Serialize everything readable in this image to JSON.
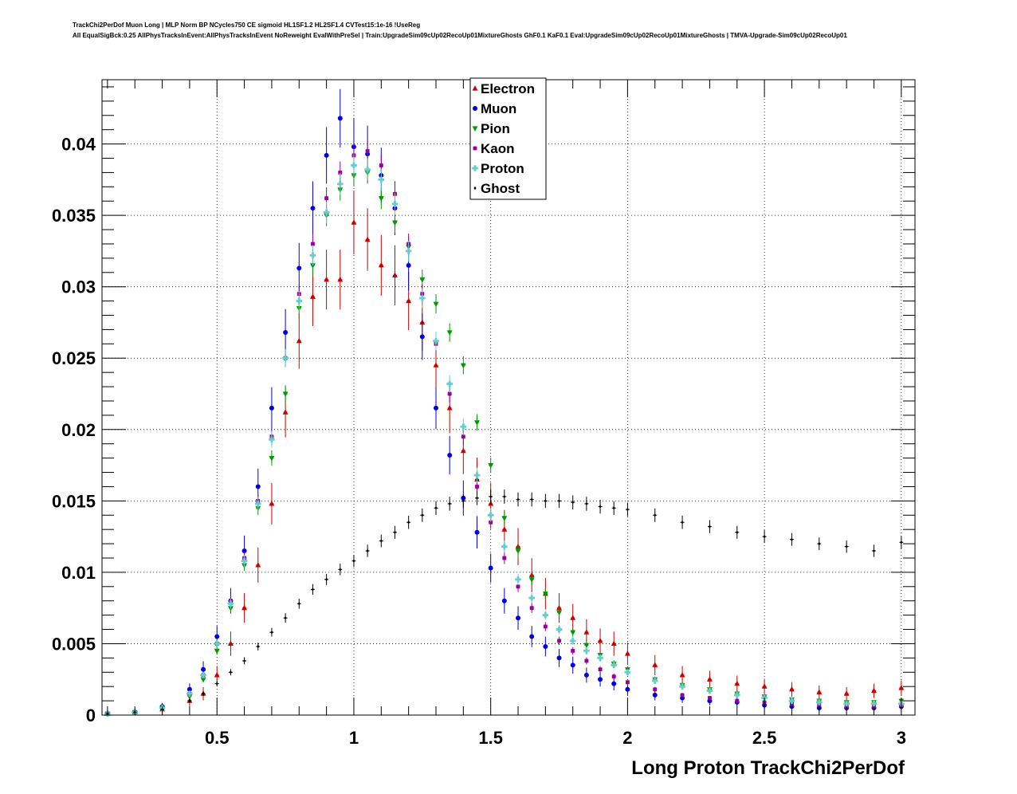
{
  "header": {
    "line1": "TrackChi2PerDof Muon Long | MLP Norm BP NCycles750 CE sigmoid HL1SF1.2 HL2SF1.4 CVTest15:1e-16 !UseReg",
    "line2": "All EqualSigBck:0.25 AllPhysTracksInEvent:AllPhysTracksInEvent NoReweight EvalWithPreSel | Train:UpgradeSim09cUp02RecoUp01MixtureGhosts GhF0.1 KaF0.1 Eval:UpgradeSim09cUp02RecoUp01MixtureGhosts | TMVA-Upgrade-Sim09cUp02RecoUp01"
  },
  "chart_data": {
    "type": "scatter",
    "title": "",
    "xlabel": "Long Proton TrackChi2PerDof",
    "ylabel": "",
    "xlim": [
      0.08,
      3.05
    ],
    "ylim": [
      0,
      0.0445
    ],
    "grid": true,
    "x_ticks": [
      0.5,
      1,
      1.5,
      2,
      2.5,
      3
    ],
    "x_tick_labels": [
      "0.5",
      "1",
      "1.5",
      "2",
      "2.5",
      "3"
    ],
    "y_ticks": [
      0,
      0.005,
      0.01,
      0.015,
      0.02,
      0.025,
      0.03,
      0.035,
      0.04
    ],
    "y_tick_labels": [
      "0",
      "0.005",
      "0.01",
      "0.015",
      "0.02",
      "0.025",
      "0.03",
      "0.035",
      "0.04"
    ],
    "legend_position": "top-center",
    "series": [
      {
        "name": "Electron",
        "color": "#cc0000",
        "marker": "triangle-up",
        "x": [
          0.1,
          0.2,
          0.3,
          0.4,
          0.45,
          0.5,
          0.55,
          0.6,
          0.65,
          0.7,
          0.75,
          0.8,
          0.85,
          0.9,
          0.95,
          1.0,
          1.05,
          1.1,
          1.15,
          1.2,
          1.25,
          1.3,
          1.35,
          1.4,
          1.45,
          1.5,
          1.55,
          1.6,
          1.65,
          1.7,
          1.75,
          1.8,
          1.85,
          1.9,
          1.95,
          2.0,
          2.1,
          2.2,
          2.3,
          2.4,
          2.5,
          2.6,
          2.7,
          2.8,
          2.9,
          3.0
        ],
        "y": [
          0.0001,
          0.0002,
          0.0004,
          0.001,
          0.0015,
          0.0028,
          0.005,
          0.0075,
          0.0105,
          0.0148,
          0.0212,
          0.0262,
          0.0293,
          0.0305,
          0.0305,
          0.0345,
          0.0333,
          0.0315,
          0.0308,
          0.029,
          0.0275,
          0.0245,
          0.0215,
          0.0185,
          0.0165,
          0.0148,
          0.013,
          0.0118,
          0.0098,
          0.0085,
          0.0075,
          0.0068,
          0.0058,
          0.0052,
          0.005,
          0.0043,
          0.0035,
          0.0028,
          0.0025,
          0.0022,
          0.002,
          0.0018,
          0.0016,
          0.0015,
          0.0017,
          0.0019
        ]
      },
      {
        "name": "Muon",
        "color": "#0000dd",
        "marker": "circle",
        "x": [
          0.1,
          0.2,
          0.3,
          0.4,
          0.45,
          0.5,
          0.55,
          0.6,
          0.65,
          0.7,
          0.75,
          0.8,
          0.85,
          0.9,
          0.95,
          1.0,
          1.05,
          1.1,
          1.15,
          1.2,
          1.25,
          1.3,
          1.35,
          1.4,
          1.45,
          1.5,
          1.55,
          1.6,
          1.65,
          1.7,
          1.75,
          1.8,
          1.85,
          1.9,
          1.95,
          2.0,
          2.1,
          2.2,
          2.3,
          2.4,
          2.5,
          2.6,
          2.7,
          2.8,
          2.9,
          3.0
        ],
        "y": [
          0.0001,
          0.0002,
          0.0006,
          0.0018,
          0.0032,
          0.0055,
          0.008,
          0.0115,
          0.016,
          0.0215,
          0.0268,
          0.0313,
          0.0355,
          0.0392,
          0.0418,
          0.0398,
          0.0393,
          0.0378,
          0.0355,
          0.0315,
          0.0265,
          0.0215,
          0.0182,
          0.0152,
          0.0128,
          0.0103,
          0.008,
          0.0068,
          0.0055,
          0.0048,
          0.004,
          0.0035,
          0.0028,
          0.0025,
          0.0022,
          0.0018,
          0.0014,
          0.0012,
          0.001,
          0.0009,
          0.0007,
          0.0006,
          0.0005,
          0.0005,
          0.0005,
          0.0006
        ]
      },
      {
        "name": "Pion",
        "color": "#009900",
        "marker": "triangle-down",
        "x": [
          0.1,
          0.2,
          0.3,
          0.4,
          0.45,
          0.5,
          0.55,
          0.6,
          0.65,
          0.7,
          0.75,
          0.8,
          0.85,
          0.9,
          0.95,
          1.0,
          1.05,
          1.1,
          1.15,
          1.2,
          1.25,
          1.3,
          1.35,
          1.4,
          1.45,
          1.5,
          1.55,
          1.6,
          1.65,
          1.7,
          1.75,
          1.8,
          1.85,
          1.9,
          1.95,
          2.0,
          2.1,
          2.2,
          2.3,
          2.4,
          2.5,
          2.6,
          2.7,
          2.8,
          2.9,
          3.0
        ],
        "y": [
          0.0001,
          0.0002,
          0.0005,
          0.0013,
          0.0025,
          0.0045,
          0.0075,
          0.0105,
          0.0145,
          0.018,
          0.0225,
          0.0285,
          0.0315,
          0.035,
          0.0368,
          0.0378,
          0.038,
          0.0362,
          0.0345,
          0.0328,
          0.0305,
          0.0288,
          0.0268,
          0.0245,
          0.0205,
          0.0175,
          0.0138,
          0.0115,
          0.0095,
          0.0085,
          0.0072,
          0.0058,
          0.0049,
          0.0042,
          0.0036,
          0.0032,
          0.0025,
          0.0021,
          0.0018,
          0.0015,
          0.0013,
          0.0011,
          0.001,
          0.0009,
          0.0009,
          0.001
        ]
      },
      {
        "name": "Kaon",
        "color": "#990099",
        "marker": "square",
        "x": [
          0.1,
          0.2,
          0.3,
          0.4,
          0.45,
          0.5,
          0.55,
          0.6,
          0.65,
          0.7,
          0.75,
          0.8,
          0.85,
          0.9,
          0.95,
          1.0,
          1.05,
          1.1,
          1.15,
          1.2,
          1.25,
          1.3,
          1.35,
          1.4,
          1.45,
          1.5,
          1.55,
          1.6,
          1.65,
          1.7,
          1.75,
          1.8,
          1.85,
          1.9,
          1.95,
          2.0,
          2.1,
          2.2,
          2.3,
          2.4,
          2.5,
          2.6,
          2.7,
          2.8,
          2.9,
          3.0
        ],
        "y": [
          0.0001,
          0.0002,
          0.0005,
          0.0015,
          0.0028,
          0.005,
          0.008,
          0.011,
          0.015,
          0.0195,
          0.025,
          0.0295,
          0.033,
          0.0362,
          0.038,
          0.0392,
          0.0395,
          0.0385,
          0.0365,
          0.033,
          0.0295,
          0.026,
          0.0225,
          0.0195,
          0.016,
          0.0135,
          0.011,
          0.009,
          0.0075,
          0.0062,
          0.0052,
          0.0045,
          0.0038,
          0.0032,
          0.0027,
          0.0023,
          0.0018,
          0.0014,
          0.0012,
          0.001,
          0.0009,
          0.0008,
          0.0007,
          0.0006,
          0.0006,
          0.0007
        ]
      },
      {
        "name": "Proton",
        "color": "#66cccc",
        "marker": "cross",
        "x": [
          0.1,
          0.2,
          0.3,
          0.4,
          0.45,
          0.5,
          0.55,
          0.6,
          0.65,
          0.7,
          0.75,
          0.8,
          0.85,
          0.9,
          0.95,
          1.0,
          1.05,
          1.1,
          1.15,
          1.2,
          1.25,
          1.3,
          1.35,
          1.4,
          1.45,
          1.5,
          1.55,
          1.6,
          1.65,
          1.7,
          1.75,
          1.8,
          1.85,
          1.9,
          1.95,
          2.0,
          2.1,
          2.2,
          2.3,
          2.4,
          2.5,
          2.6,
          2.7,
          2.8,
          2.9,
          3.0
        ],
        "y": [
          0.0001,
          0.0002,
          0.0005,
          0.0015,
          0.0028,
          0.005,
          0.0078,
          0.0108,
          0.0148,
          0.0193,
          0.025,
          0.029,
          0.0322,
          0.0352,
          0.0372,
          0.0385,
          0.0382,
          0.0375,
          0.0358,
          0.0325,
          0.0292,
          0.0262,
          0.0232,
          0.0202,
          0.0168,
          0.014,
          0.0118,
          0.0095,
          0.0082,
          0.007,
          0.006,
          0.0052,
          0.0045,
          0.004,
          0.0035,
          0.003,
          0.0024,
          0.002,
          0.0017,
          0.0014,
          0.0012,
          0.001,
          0.0009,
          0.0008,
          0.0008,
          0.0008
        ]
      },
      {
        "name": "Ghost",
        "color": "#000000",
        "marker": "star",
        "x": [
          0.1,
          0.2,
          0.3,
          0.4,
          0.45,
          0.5,
          0.55,
          0.6,
          0.65,
          0.7,
          0.75,
          0.8,
          0.85,
          0.9,
          0.95,
          1.0,
          1.05,
          1.1,
          1.15,
          1.2,
          1.25,
          1.3,
          1.35,
          1.4,
          1.45,
          1.5,
          1.55,
          1.6,
          1.65,
          1.7,
          1.75,
          1.8,
          1.85,
          1.9,
          1.95,
          2.0,
          2.1,
          2.2,
          2.3,
          2.4,
          2.5,
          2.6,
          2.7,
          2.8,
          2.9,
          3.0
        ],
        "y": [
          0.0001,
          0.0002,
          0.0004,
          0.001,
          0.0015,
          0.0022,
          0.003,
          0.0038,
          0.0048,
          0.0058,
          0.0068,
          0.0078,
          0.0088,
          0.0095,
          0.0102,
          0.0108,
          0.0115,
          0.0122,
          0.0128,
          0.0135,
          0.014,
          0.0145,
          0.0148,
          0.015,
          0.0152,
          0.0153,
          0.0153,
          0.0151,
          0.0151,
          0.015,
          0.015,
          0.0149,
          0.0148,
          0.0146,
          0.0145,
          0.0144,
          0.014,
          0.0135,
          0.0132,
          0.0128,
          0.0125,
          0.0123,
          0.012,
          0.0118,
          0.0115,
          0.0121
        ]
      }
    ]
  }
}
